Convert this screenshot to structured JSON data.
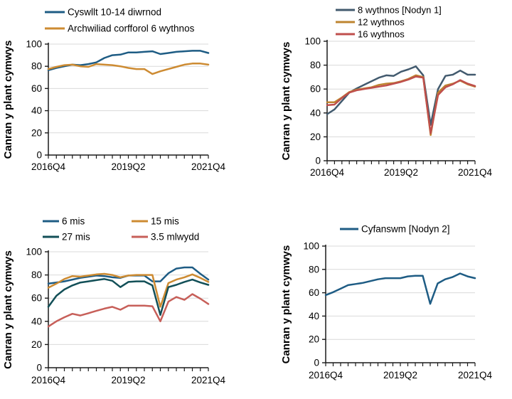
{
  "page": {
    "background": "#ffffff"
  },
  "colors": {
    "axis": "#1a1a1a",
    "grid": "#d9d9d9",
    "text": "#000000"
  },
  "chart_data": [
    {
      "type": "line",
      "name": "chart-contact-10-14-days",
      "ylabel": "Canran y plant cymwys",
      "ylim": [
        0,
        100
      ],
      "yticks": [
        0,
        20,
        40,
        60,
        80,
        100
      ],
      "grid": true,
      "legend_position": "top-left",
      "categories": [
        "2016Q4",
        "2017Q1",
        "2017Q2",
        "2017Q3",
        "2017Q4",
        "2018Q1",
        "2018Q2",
        "2018Q3",
        "2018Q4",
        "2019Q1",
        "2019Q2",
        "2019Q3",
        "2019Q4",
        "2020Q1",
        "2020Q2",
        "2020Q3",
        "2020Q4",
        "2021Q1",
        "2021Q2",
        "2021Q3",
        "2021Q4"
      ],
      "xtick_labels": [
        {
          "index": 0,
          "label": "2016Q4"
        },
        {
          "index": 10,
          "label": "2019Q2"
        },
        {
          "index": 20,
          "label": "2021Q4"
        }
      ],
      "series": [
        {
          "name": "Cyswllt 10-14 diwrnod",
          "color": "#1E5C84",
          "values": [
            76.5,
            78.5,
            80,
            81.5,
            81,
            82,
            83.5,
            87.5,
            90,
            90.5,
            92.5,
            92.5,
            93,
            93.5,
            91,
            92,
            93,
            93.5,
            94,
            94,
            92
          ]
        },
        {
          "name": "Archwiliad corfforol 6 wythnos",
          "color": "#CD8B32",
          "values": [
            77.5,
            79.5,
            81,
            81.5,
            80,
            79.5,
            82,
            81.5,
            81,
            80,
            78.5,
            77.5,
            77.5,
            73,
            75.5,
            77.5,
            79.5,
            81.5,
            82.5,
            82.5,
            81.5
          ]
        }
      ]
    },
    {
      "type": "line",
      "name": "chart-wythnos-reviews",
      "ylabel": "Canran y plant cymwys",
      "ylim": [
        0,
        100
      ],
      "yticks": [
        0,
        20,
        40,
        60,
        80,
        100
      ],
      "grid": true,
      "legend_position": "top-left",
      "categories": [
        "2016Q4",
        "2017Q1",
        "2017Q2",
        "2017Q3",
        "2017Q4",
        "2018Q1",
        "2018Q2",
        "2018Q3",
        "2018Q4",
        "2019Q1",
        "2019Q2",
        "2019Q3",
        "2019Q4",
        "2020Q1",
        "2020Q2",
        "2020Q3",
        "2020Q4",
        "2021Q1",
        "2021Q2",
        "2021Q3",
        "2021Q4"
      ],
      "xtick_labels": [
        {
          "index": 0,
          "label": "2016Q4"
        },
        {
          "index": 10,
          "label": "2019Q2"
        },
        {
          "index": 20,
          "label": "2021Q4"
        }
      ],
      "series": [
        {
          "name": "8 wythnos [Nodyn 1]",
          "color": "#425A6E",
          "values": [
            39,
            43,
            50,
            57,
            60.5,
            63.5,
            66.5,
            69.5,
            71.5,
            71,
            74.5,
            76.5,
            79,
            71.5,
            30,
            60,
            71,
            72,
            75.5,
            72,
            72
          ]
        },
        {
          "name": "12 wythnos",
          "color": "#BE8430",
          "values": [
            49,
            49,
            53,
            57.5,
            59.5,
            60.5,
            61.5,
            63.5,
            64.5,
            65,
            66.5,
            68.5,
            71.5,
            70,
            21.5,
            57,
            63,
            64.5,
            67,
            64,
            62
          ]
        },
        {
          "name": "16 wythnos",
          "color": "#BF4F4C",
          "values": [
            46.5,
            47,
            52.5,
            57,
            59,
            60,
            61,
            62,
            63,
            64.5,
            66,
            68,
            70.5,
            69.5,
            23,
            55,
            61.5,
            64,
            67.5,
            64.5,
            62.5
          ]
        }
      ]
    },
    {
      "type": "line",
      "name": "chart-mis-reviews",
      "ylabel": "Canran y plant cymwys",
      "ylim": [
        0,
        100
      ],
      "yticks": [
        0,
        20,
        40,
        60,
        80,
        100
      ],
      "grid": true,
      "legend_position": "top-two-columns",
      "categories": [
        "2016Q4",
        "2017Q1",
        "2017Q2",
        "2017Q3",
        "2017Q4",
        "2018Q1",
        "2018Q2",
        "2018Q3",
        "2018Q4",
        "2019Q1",
        "2019Q2",
        "2019Q3",
        "2019Q4",
        "2020Q1",
        "2020Q2",
        "2020Q3",
        "2020Q4",
        "2021Q1",
        "2021Q2",
        "2021Q3",
        "2021Q4"
      ],
      "xtick_labels": [
        {
          "index": 0,
          "label": "2016Q4"
        },
        {
          "index": 10,
          "label": "2019Q2"
        },
        {
          "index": 20,
          "label": "2021Q4"
        }
      ],
      "series": [
        {
          "name": "6 mis",
          "color": "#1E5C84",
          "values": [
            72.5,
            73.5,
            74.5,
            76,
            77.5,
            78.5,
            79.5,
            79,
            78,
            77.5,
            79.5,
            79.5,
            79.5,
            74.5,
            74.5,
            81.5,
            85.5,
            86.5,
            86.5,
            81,
            76
          ]
        },
        {
          "name": "15 mis",
          "color": "#CD8B32",
          "values": [
            69,
            72.5,
            76.5,
            79,
            78.5,
            79.5,
            80.5,
            81,
            80,
            78,
            79.5,
            80,
            80,
            80,
            52.5,
            73,
            76,
            78,
            80.5,
            77.5,
            74
          ]
        },
        {
          "name": "27 mis",
          "color": "#124F57",
          "values": [
            52.5,
            62,
            67.5,
            71,
            73.5,
            74.5,
            75.5,
            76.5,
            75,
            69.5,
            74,
            74.5,
            74.5,
            71,
            45.5,
            69.5,
            71.5,
            74,
            76,
            73.5,
            71.5
          ]
        },
        {
          "name": "3.5 mlwydd",
          "color": "#C75F59",
          "values": [
            35.5,
            40,
            43.5,
            46.5,
            45,
            47,
            49,
            51,
            52.5,
            50,
            53.5,
            53.5,
            53.5,
            53,
            40,
            57,
            61,
            58.5,
            63.5,
            59.5,
            55
          ]
        }
      ]
    },
    {
      "type": "line",
      "name": "chart-cyfanswm",
      "ylabel": "Canran y plant cymwys",
      "ylim": [
        0,
        100
      ],
      "yticks": [
        0,
        20,
        40,
        60,
        80,
        100
      ],
      "grid": true,
      "legend_position": "top-center",
      "categories": [
        "2016Q4",
        "2017Q1",
        "2017Q2",
        "2017Q3",
        "2017Q4",
        "2018Q1",
        "2018Q2",
        "2018Q3",
        "2018Q4",
        "2019Q1",
        "2019Q2",
        "2019Q3",
        "2019Q4",
        "2020Q1",
        "2020Q2",
        "2020Q3",
        "2020Q4",
        "2021Q1",
        "2021Q2",
        "2021Q3",
        "2021Q4"
      ],
      "xtick_labels": [
        {
          "index": 0,
          "label": "2016Q4"
        },
        {
          "index": 10,
          "label": "2019Q2"
        },
        {
          "index": 20,
          "label": "2021Q4"
        }
      ],
      "series": [
        {
          "name": "Cyfanswm [Nodyn 2]",
          "color": "#1E5C84",
          "values": [
            58,
            60.5,
            63.5,
            66.5,
            67.5,
            68.5,
            70,
            71.5,
            72.5,
            72.5,
            72.5,
            74,
            74.5,
            74.5,
            50.5,
            68,
            71.5,
            73.5,
            76.5,
            74,
            72.5
          ]
        }
      ]
    }
  ]
}
